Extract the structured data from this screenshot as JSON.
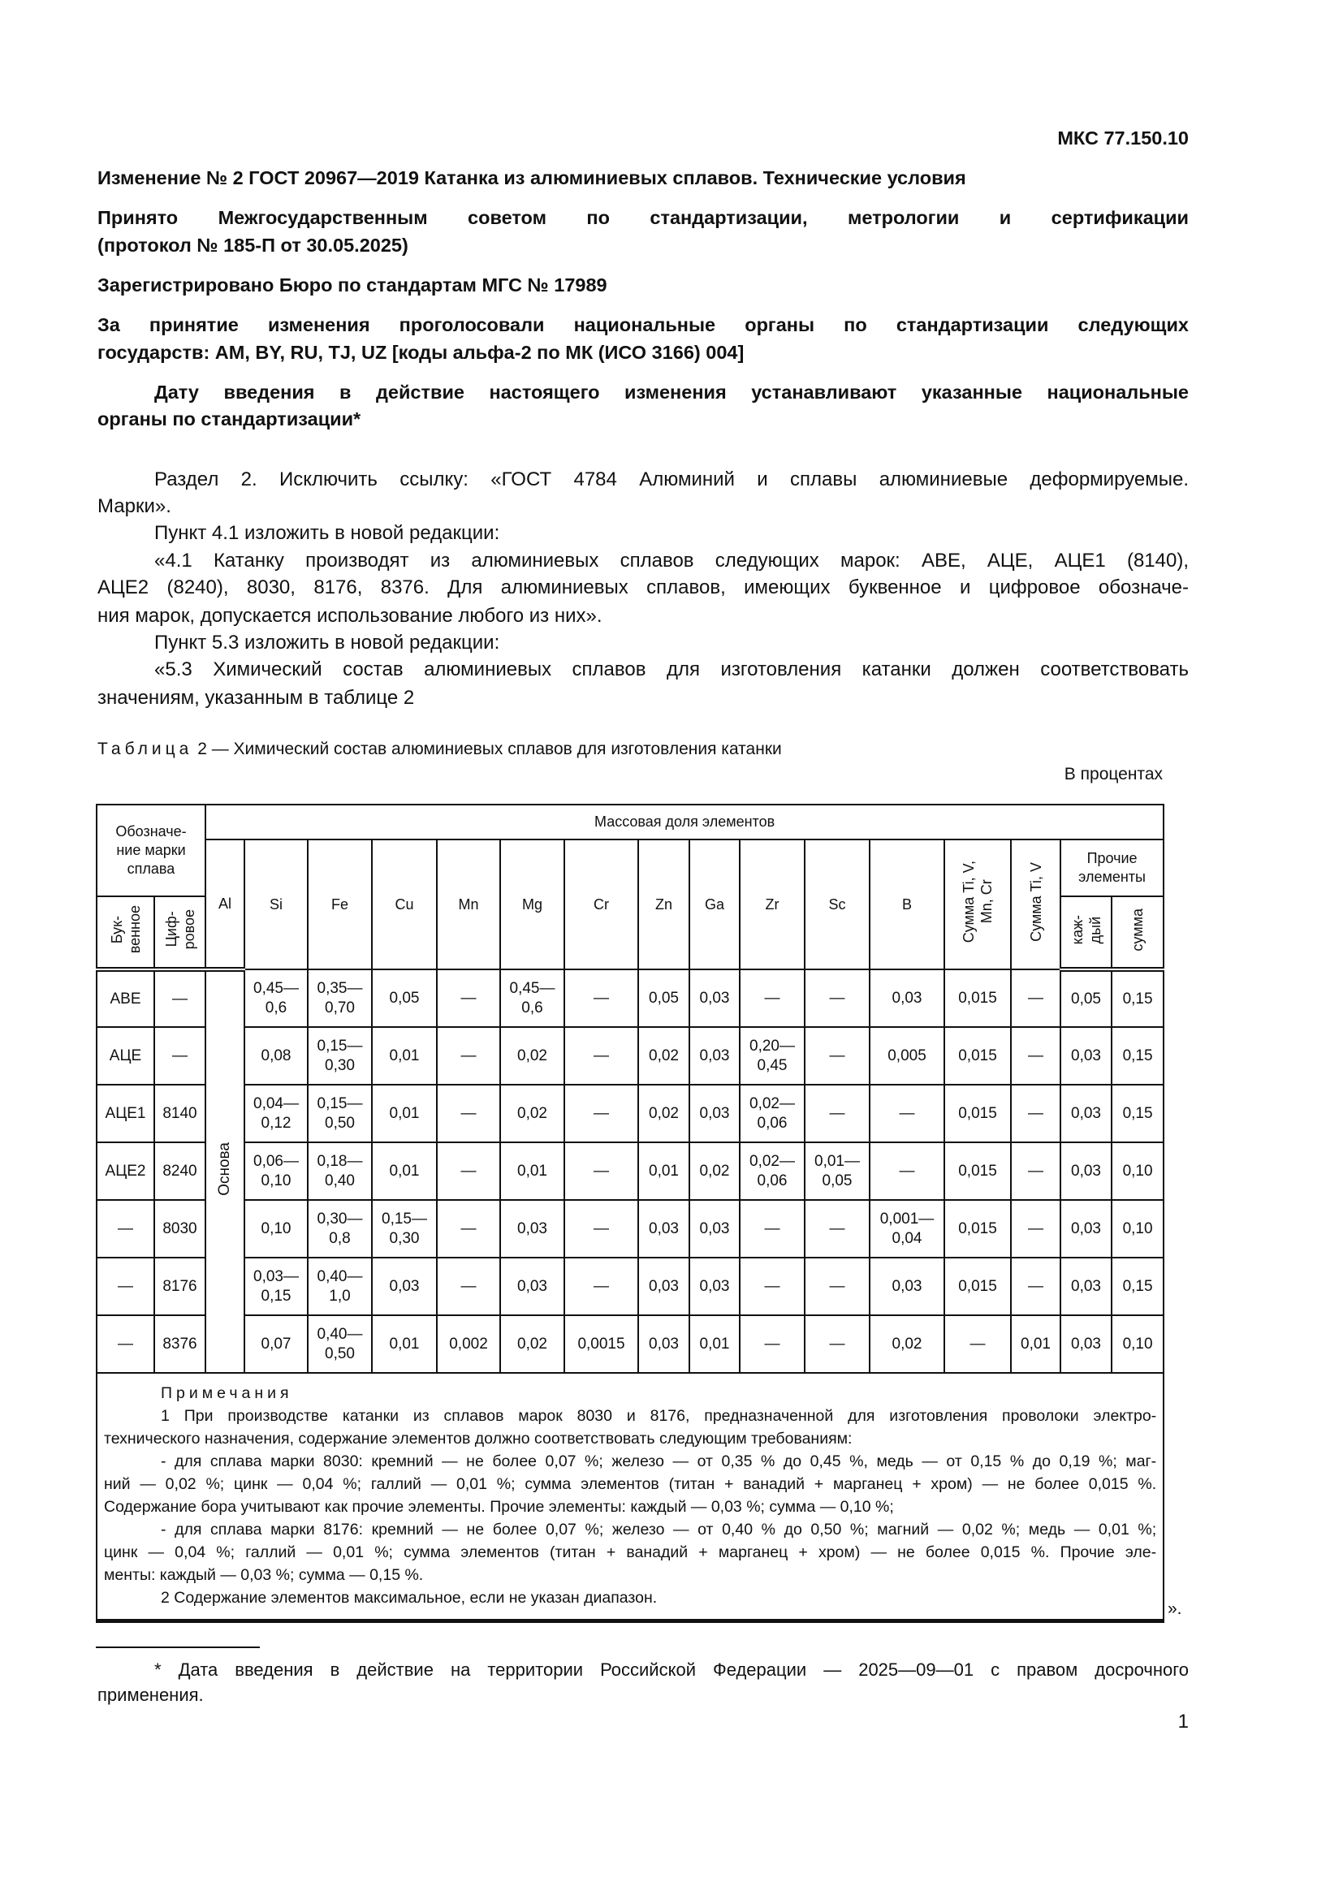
{
  "header": {
    "code": "МКС 77.150.10",
    "title": "Изменение № 2 ГОСТ 20967—2019 Катанка из алюминиевых сплавов. Технические условия",
    "adopted": [
      "Принято Межгосударственным советом по стандартизации, метрологии и сертификации",
      "(протокол № 185-П от 30.05.2025)"
    ],
    "registered": "Зарегистрировано Бюро по стандартам МГС № 17989",
    "voted": [
      "За принятие изменения проголосовали национальные органы по стандартизации следующих",
      "государств: AM, BY, RU, TJ, UZ [коды альфа-2 по МК (ИСО 3166) 004]"
    ],
    "effective": [
      "Дату введения в действие настоящего изменения устанавливают указанные национальные",
      "органы по стандартизации*"
    ]
  },
  "body": [
    "Раздел 2. Исключить ссылку: «ГОСТ 4784 Алюминий и сплавы алюминиевые деформируемые.",
    "Марки».",
    "Пункт 4.1 изложить в новой редакции:",
    "«4.1 Катанку производят из алюминиевых сплавов следующих марок: АВЕ, АЦЕ, АЦЕ1 (8140),",
    "АЦЕ2 (8240), 8030, 8176, 8376. Для алюминиевых сплавов, имеющих буквенное и цифровое обозначе-",
    "ния марок, допускается использование любого из них».",
    "Пункт 5.3 изложить в новой редакции:",
    "«5.3 Химический состав алюминиевых сплавов для изготовления катанки должен соответствовать",
    "значениям, указанным в таблице 2"
  ],
  "table": {
    "caption_label": "Таблица",
    "caption_text": "2 — Химический состав алюминиевых сплавов для изготовления катанки",
    "unit": "В процентах",
    "designation": "Обозначе-\nние марки\nсплава",
    "mass_fraction": "Массовая доля элементов",
    "letter": "Бук-\nвенное",
    "digital": "Циф-\nровое",
    "elements": [
      "Al",
      "Si",
      "Fe",
      "Cu",
      "Mn",
      "Mg",
      "Cr",
      "Zn",
      "Ga",
      "Zr",
      "Sc",
      "B"
    ],
    "sum_ti_v_mn_cr": "Сумма Ti, V,\nMn, Cr",
    "sum_ti_v": "Сумма Ti, V",
    "other": "Прочие\nэлементы",
    "each": "каж-\nдый",
    "sum": "сумма",
    "al_value": "Основа",
    "rows": [
      {
        "letter": "АВЕ",
        "digital": "—",
        "values": [
          "0,45—\n0,6",
          "0,35—\n0,70",
          "0,05",
          "—",
          "0,45—\n0,6",
          "—",
          "0,05",
          "0,03",
          "—",
          "—",
          "0,03",
          "0,015",
          "—",
          "0,05",
          "0,15"
        ]
      },
      {
        "letter": "АЦЕ",
        "digital": "—",
        "values": [
          "0,08",
          "0,15—\n0,30",
          "0,01",
          "—",
          "0,02",
          "—",
          "0,02",
          "0,03",
          "0,20—\n0,45",
          "—",
          "0,005",
          "0,015",
          "—",
          "0,03",
          "0,15"
        ]
      },
      {
        "letter": "АЦЕ1",
        "digital": "8140",
        "values": [
          "0,04—\n0,12",
          "0,15—\n0,50",
          "0,01",
          "—",
          "0,02",
          "—",
          "0,02",
          "0,03",
          "0,02—\n0,06",
          "—",
          "—",
          "0,015",
          "—",
          "0,03",
          "0,15"
        ]
      },
      {
        "letter": "АЦЕ2",
        "digital": "8240",
        "values": [
          "0,06—\n0,10",
          "0,18—\n0,40",
          "0,01",
          "—",
          "0,01",
          "—",
          "0,01",
          "0,02",
          "0,02—\n0,06",
          "0,01—\n0,05",
          "—",
          "0,015",
          "—",
          "0,03",
          "0,10"
        ]
      },
      {
        "letter": "—",
        "digital": "8030",
        "values": [
          "0,10",
          "0,30—\n0,8",
          "0,15—\n0,30",
          "—",
          "0,03",
          "—",
          "0,03",
          "0,03",
          "—",
          "—",
          "0,001—\n0,04",
          "0,015",
          "—",
          "0,03",
          "0,10"
        ]
      },
      {
        "letter": "—",
        "digital": "8176",
        "values": [
          "0,03—\n0,15",
          "0,40—\n1,0",
          "0,03",
          "—",
          "0,03",
          "—",
          "0,03",
          "0,03",
          "—",
          "—",
          "0,03",
          "0,015",
          "—",
          "0,03",
          "0,15"
        ]
      },
      {
        "letter": "—",
        "digital": "8376",
        "values": [
          "0,07",
          "0,40—\n0,50",
          "0,01",
          "0,002",
          "0,02",
          "0,0015",
          "0,03",
          "0,01",
          "—",
          "—",
          "0,02",
          "—",
          "0,01",
          "0,03",
          "0,10"
        ]
      }
    ],
    "notes_title": "Примечания",
    "notes": [
      "1 При производстве катанки из сплавов марок 8030 и 8176, предназначенной для изготовления проволоки электро-",
      "технического назначения, содержание элементов должно соответствовать следующим требованиям:",
      "- для сплава марки 8030: кремний — не более 0,07 %; железо — от 0,35 % до 0,45 %, медь — от 0,15 % до 0,19 %; маг-",
      "ний — 0,02 %; цинк — 0,04 %; галлий — 0,01 %; сумма элементов (титан + ванадий + марганец + хром) — не более 0,015 %.",
      "Содержание бора учитывают как прочие элементы. Прочие элементы: каждый — 0,03 %; сумма — 0,10 %;",
      "- для сплава марки 8176: кремний — не более 0,07 %; железо — от 0,40 % до 0,50 %; магний — 0,02 %; медь — 0,01 %;",
      "цинк — 0,04 %; галлий — 0,01 %; сумма элементов (титан + ванадий + марганец + хром) — не более 0,015 %. Прочие эле-",
      "менты: каждый — 0,03 %; сумма — 0,15 %.",
      "2 Содержание элементов максимальное, если не указан диапазон."
    ],
    "closing_quote": "»."
  },
  "footnote": [
    "* Дата введения в действие на территории Российской Федерации — 2025—09—01 с правом досрочного",
    "применения."
  ],
  "page_number": "1"
}
